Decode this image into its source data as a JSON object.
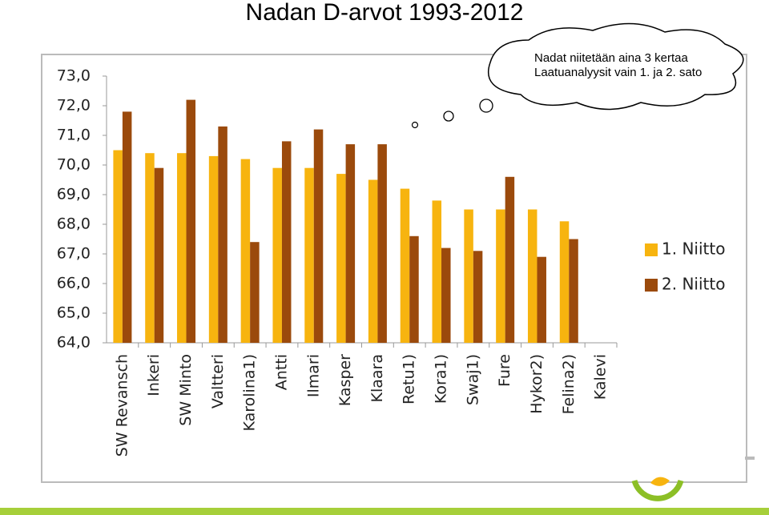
{
  "chart_data": {
    "type": "bar",
    "title": "Nadan D-arvot 1993-2012",
    "annotations": [
      "Nadat niitetään aina 3 kertaa",
      "Laatuanalyysit vain 1. ja 2. sato"
    ],
    "categories": [
      "SW Revansch",
      "Inkeri",
      "SW Minto",
      "Valtteri",
      "Karolina1)",
      "Antti",
      "Ilmari",
      "Kasper",
      "Klaara",
      "Retu1)",
      "Kora1)",
      "Swaj1)",
      "Fure",
      "Hykor2)",
      "Felina2)",
      "Kalevi"
    ],
    "series": [
      {
        "name": "1. Niitto",
        "color": "#f7b40f",
        "values": [
          70.5,
          70.4,
          70.4,
          70.3,
          70.2,
          69.9,
          69.9,
          69.7,
          69.5,
          69.2,
          68.8,
          68.5,
          68.5,
          68.5,
          68.1,
          null
        ]
      },
      {
        "name": "2. Niitto",
        "color": "#9b4a0c",
        "values": [
          71.8,
          69.9,
          72.2,
          71.3,
          67.4,
          70.8,
          71.2,
          70.7,
          70.7,
          67.6,
          67.2,
          67.1,
          69.6,
          66.9,
          67.5,
          null
        ]
      }
    ],
    "ylim": [
      64,
      73
    ],
    "yticks": [
      {
        "value": 64,
        "label": "64,0"
      },
      {
        "value": 65,
        "label": "65,0"
      },
      {
        "value": 66,
        "label": "66,0"
      },
      {
        "value": 67,
        "label": "67,0"
      },
      {
        "value": 68,
        "label": "68,0"
      },
      {
        "value": 69,
        "label": "69,0"
      },
      {
        "value": 70,
        "label": "70,0"
      },
      {
        "value": 71,
        "label": "71,0"
      },
      {
        "value": 72,
        "label": "72,0"
      },
      {
        "value": 73,
        "label": "73,0"
      }
    ],
    "grid": false,
    "legend": "right"
  }
}
